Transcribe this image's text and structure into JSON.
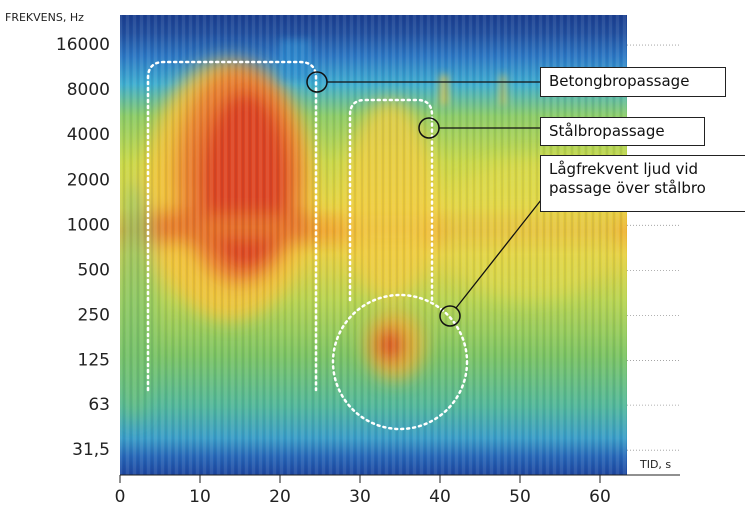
{
  "chart_data": {
    "type": "spectrogram",
    "ylabel": "FREKVENS, Hz",
    "xlabel": "TID, s",
    "yscale": "log",
    "xlim": [
      0,
      70
    ],
    "ylim": [
      21.5,
      25400
    ],
    "xticks": [
      0,
      10,
      20,
      30,
      40,
      50,
      60
    ],
    "yticks": [
      {
        "value": 31.5,
        "label": "31,5"
      },
      63,
      125,
      250,
      500,
      1000,
      2000,
      4000,
      8000,
      16000
    ],
    "grid": true,
    "annotations": [
      {
        "text": "Betongbropassage"
      },
      {
        "text": "Stålbropassage"
      },
      {
        "text": "Lågfrekvent ljud vid\npassage över stålbro"
      }
    ]
  }
}
